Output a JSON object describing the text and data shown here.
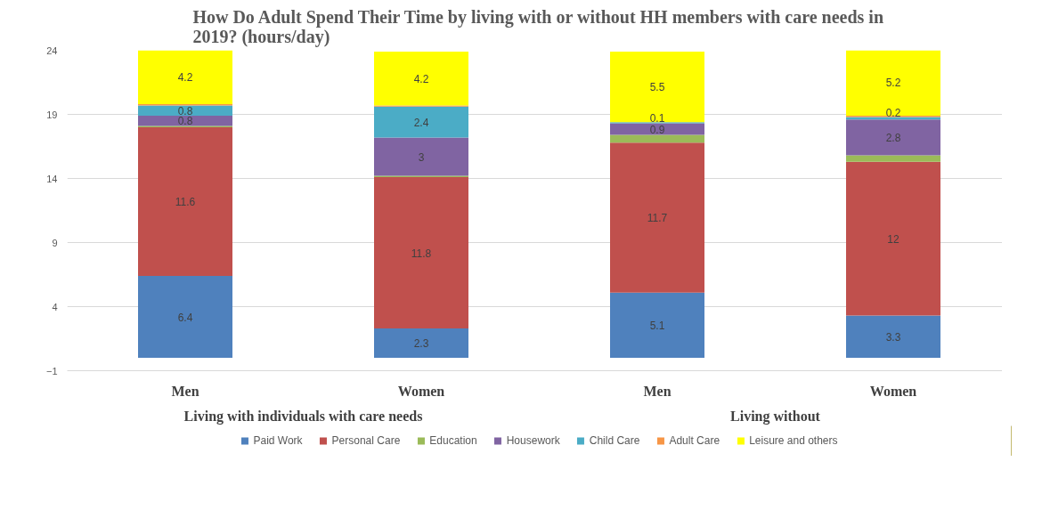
{
  "chart_data": {
    "type": "bar",
    "stacked": true,
    "title": "How Do Adult Spend Their Time by living with or without HH members with care needs in 2019? (hours/day)",
    "categories": [
      "Men",
      "Women",
      "Men",
      "Women"
    ],
    "annotations": [
      "Living with individuals with care needs",
      "Living without"
    ],
    "ylim": [
      -1,
      24
    ],
    "yticks": [
      -1,
      4,
      9,
      14,
      19,
      24
    ],
    "grid": "y",
    "legend": "bottom",
    "series": [
      {
        "name": "Paid Work",
        "color": "#4f81bd",
        "values": [
          6.4,
          2.3,
          5.1,
          3.3
        ],
        "value_labels": [
          "6.4",
          "2.3",
          "5.1",
          "3.3"
        ]
      },
      {
        "name": "Personal Care",
        "color": "#c0504d",
        "values": [
          11.6,
          11.8,
          11.7,
          12
        ],
        "value_labels": [
          "11.6",
          "11.8",
          "11.7",
          "12"
        ]
      },
      {
        "name": "Education",
        "color": "#9bbb59",
        "values": [
          0.1,
          0.1,
          0.6,
          0.5
        ],
        "value_labels": [
          null,
          null,
          null,
          null
        ]
      },
      {
        "name": "Housework",
        "color": "#8064a2",
        "values": [
          0.8,
          3,
          0.9,
          2.8
        ],
        "value_labels": [
          "0.8",
          "3",
          "0.9",
          "2.8"
        ]
      },
      {
        "name": "Child Care",
        "color": "#4bacc6",
        "values": [
          0.8,
          2.4,
          0.1,
          0.2
        ],
        "value_labels": [
          "0.8",
          "2.4",
          "0.1",
          "0.2"
        ]
      },
      {
        "name": "Adult Care",
        "color": "#f79646",
        "values": [
          0.1,
          0.1,
          0,
          0.1
        ],
        "value_labels": [
          null,
          null,
          null,
          null
        ]
      },
      {
        "name": "Leisure and others",
        "color": "#ffff00",
        "values": [
          4.2,
          4.2,
          5.5,
          5.2
        ],
        "value_labels": [
          "4.2",
          "4.2",
          "5.5",
          "5.2"
        ]
      }
    ]
  }
}
